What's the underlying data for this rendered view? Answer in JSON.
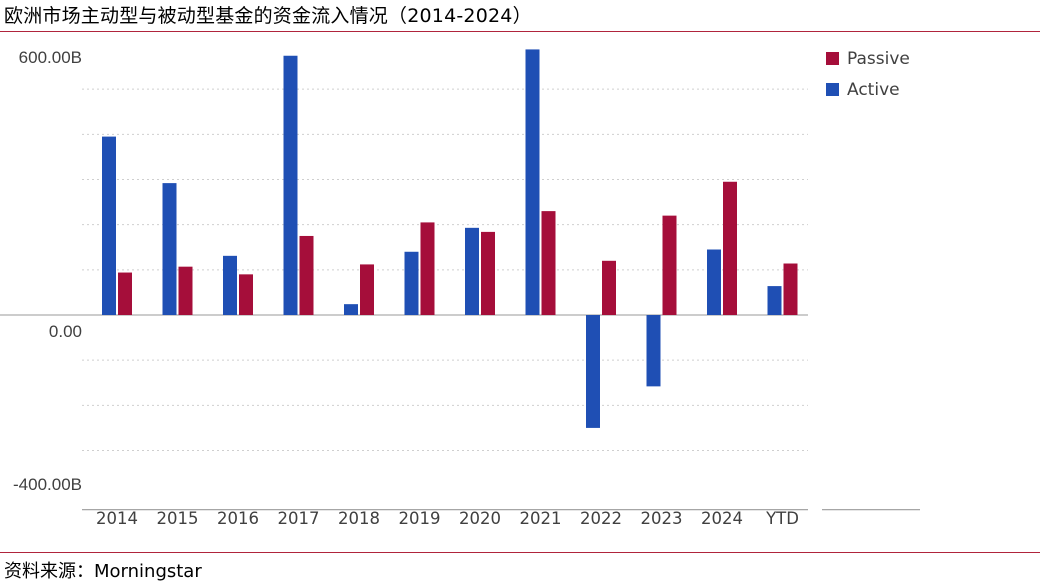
{
  "title": "欧洲市场主动型与被动型基金的资金流入情况（2014-2024）",
  "source": "资料来源：Morningstar",
  "colors": {
    "rule": "#b0243c",
    "active": "#1f4fb4",
    "passive": "#a50e3a",
    "grid": "#cfcfcf",
    "axis": "#9a9a9a"
  },
  "chart_data": {
    "type": "bar",
    "categories": [
      "2014",
      "2015",
      "2016",
      "2017",
      "2018",
      "2019",
      "2020",
      "2021",
      "2022",
      "2023",
      "2024",
      "YTD"
    ],
    "series": [
      {
        "name": "Active",
        "values": [
          395,
          292,
          131,
          574,
          24,
          140,
          193,
          588,
          -250,
          -158,
          145,
          64
        ]
      },
      {
        "name": "Passive",
        "values": [
          94,
          107,
          90,
          175,
          112,
          205,
          184,
          230,
          120,
          220,
          295,
          114
        ]
      }
    ],
    "ylim": [
      -400,
      600
    ],
    "y_tick_labels": [
      "600.00B",
      "0.00",
      "-400.00B"
    ],
    "y_tick_values": [
      600,
      0,
      -400
    ],
    "legend": [
      {
        "name": "Passive"
      },
      {
        "name": "Active"
      }
    ],
    "legend_position": "top-right",
    "grid": true
  }
}
